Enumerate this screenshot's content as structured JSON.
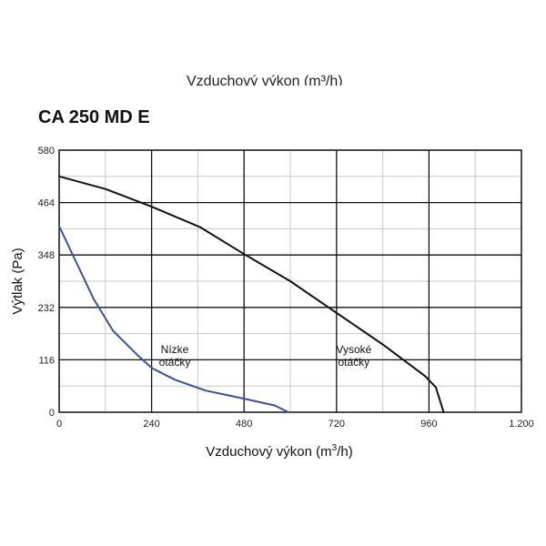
{
  "header": {
    "cut_title": "Vzduchový výkon (m³/h)",
    "title": "CA 250 MD E"
  },
  "chart_data": {
    "type": "line",
    "title": "CA 250 MD E",
    "xlabel_prefix": "Vzduchový výkon (m",
    "xlabel_sup": "3",
    "xlabel_suffix": "/h)",
    "ylabel": "Výtlak (Pa)",
    "xlim": [
      0,
      1200
    ],
    "ylim": [
      0,
      580
    ],
    "x_ticks": [
      0,
      240,
      480,
      720,
      960,
      1200
    ],
    "x_tick_labels": [
      "0",
      "240",
      "480",
      "720",
      "960",
      "1.200"
    ],
    "y_ticks": [
      0,
      116,
      232,
      348,
      464,
      580
    ],
    "y_tick_labels": [
      "0",
      "116",
      "232",
      "348",
      "464",
      "580"
    ],
    "minor_x_step": 120,
    "minor_y_step": 58,
    "grid": true,
    "series": [
      {
        "name": "Nízke otáčky",
        "color": "#3a4fb0",
        "x": [
          0,
          40,
          90,
          140,
          205,
          240,
          300,
          380,
          480,
          560,
          595
        ],
        "y": [
          412,
          340,
          250,
          180,
          125,
          98,
          72,
          48,
          30,
          15,
          0
        ]
      },
      {
        "name": "Vysoké otáčky",
        "color": "#111111",
        "x": [
          0,
          120,
          240,
          365,
          480,
          600,
          720,
          840,
          950,
          978,
          998
        ],
        "y": [
          522,
          494,
          455,
          410,
          350,
          290,
          220,
          150,
          80,
          55,
          0
        ]
      }
    ],
    "annotations": [
      {
        "lines": [
          "Nízke",
          "otáčky"
        ],
        "x": 300,
        "y": 123
      },
      {
        "lines": [
          "Vysoké",
          "otáčky"
        ],
        "x": 765,
        "y": 123
      }
    ]
  }
}
